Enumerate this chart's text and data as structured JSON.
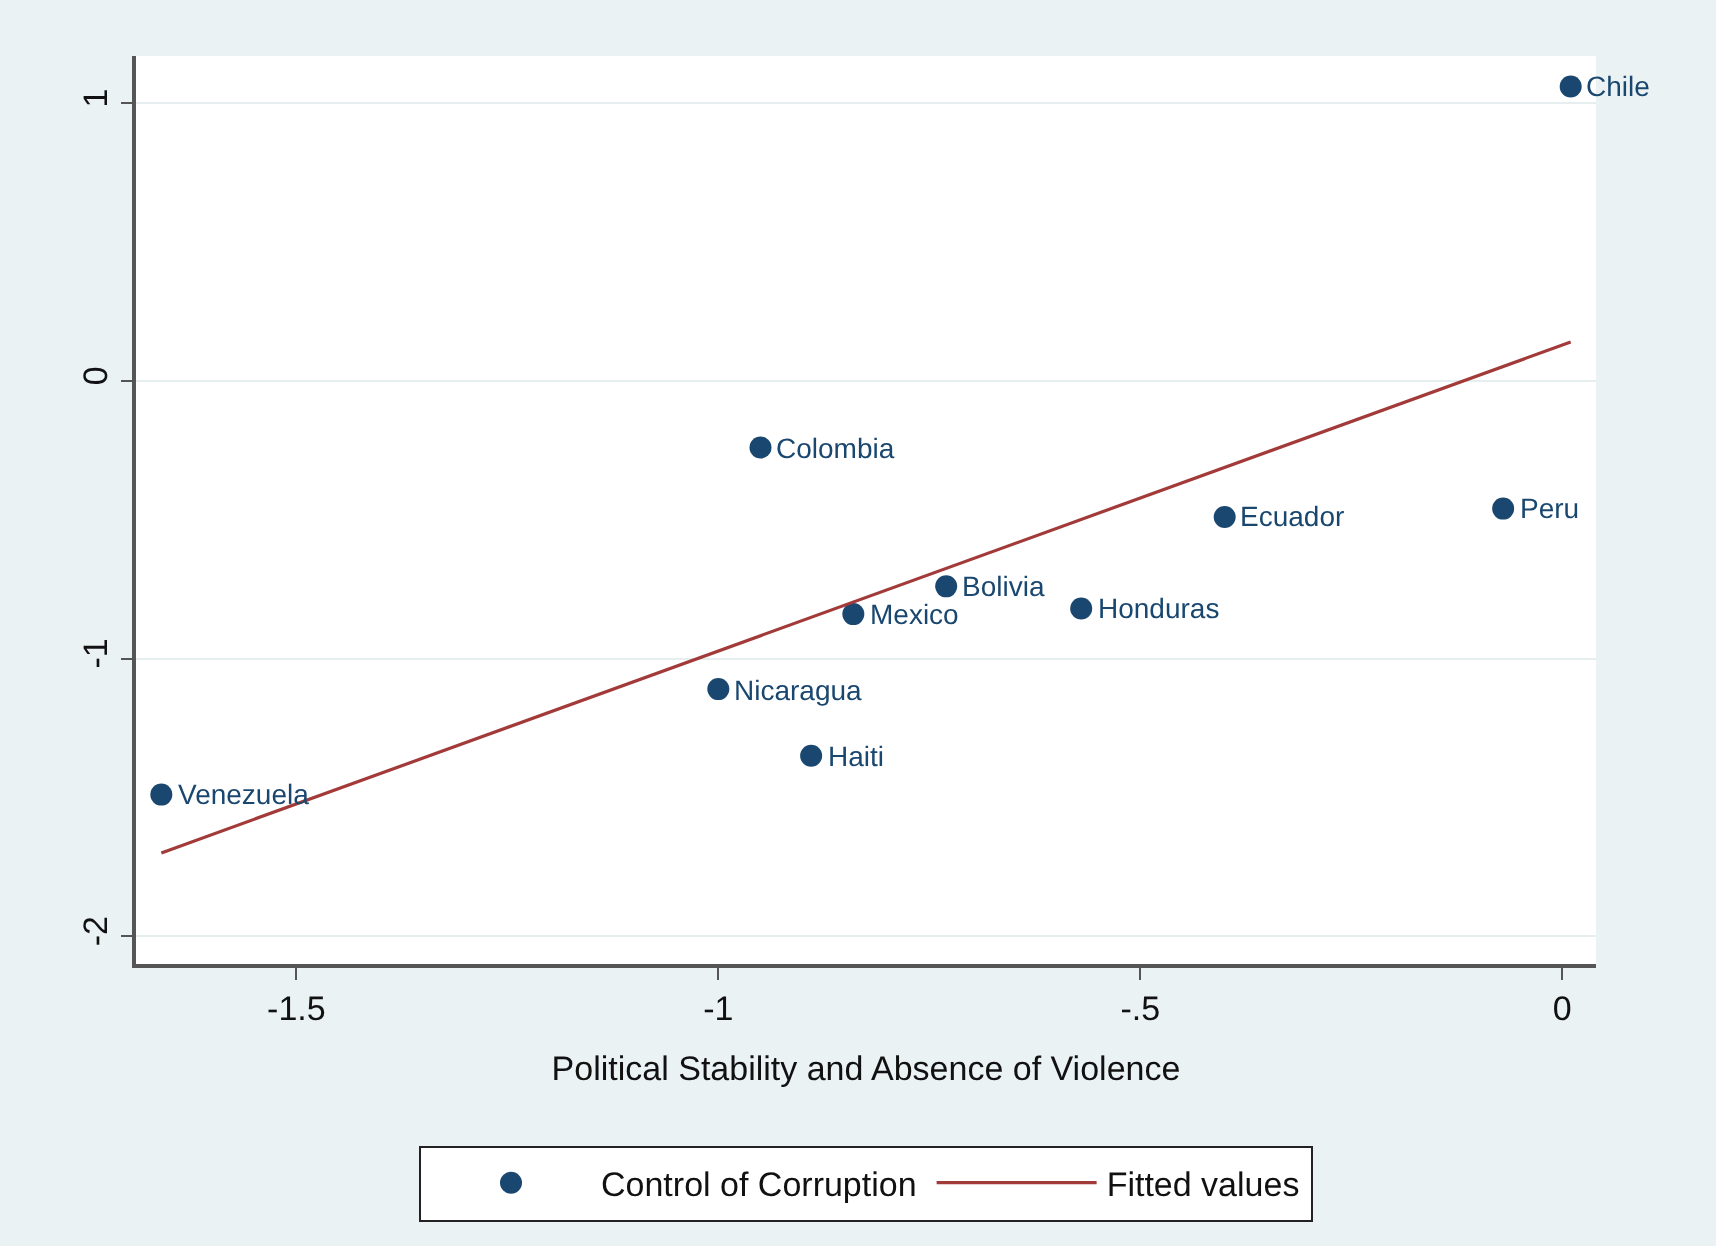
{
  "chart_data": {
    "type": "scatter",
    "xlabel": "Political Stability and Absence of Violence",
    "xlim": [
      -1.69,
      0.04
    ],
    "xticks": [
      {
        "value": -1.5,
        "label": "-1.5"
      },
      {
        "value": -1,
        "label": "-1"
      },
      {
        "value": -0.5,
        "label": "-.5"
      },
      {
        "value": 0,
        "label": "0"
      }
    ],
    "ylim": [
      -2.1,
      1.17
    ],
    "yticks": [
      -2,
      -1,
      0,
      1
    ],
    "grid": "y",
    "legend": "bottom",
    "series": [
      {
        "name": "Control of Corruption",
        "marker": "circle",
        "color": "#1a476f",
        "x": [
          -1.66,
          -1.0,
          -0.95,
          -0.89,
          -0.84,
          -0.73,
          -0.57,
          -0.4,
          -0.07,
          0.01
        ],
        "values": [
          -1.49,
          -1.11,
          -0.24,
          -1.35,
          -0.84,
          -0.74,
          -0.82,
          -0.49,
          -0.46,
          1.06
        ]
      },
      {
        "name": "Fitted values",
        "type": "line",
        "color": "#a33a3a",
        "line_style": "solid",
        "x": [
          -1.66,
          0.01
        ],
        "values": [
          -1.7,
          0.14
        ]
      }
    ],
    "annotations": [
      {
        "text": "Venezuela",
        "x": -1.66,
        "y": -1.49
      },
      {
        "text": "Nicaragua",
        "x": -1.0,
        "y": -1.11
      },
      {
        "text": "Colombia",
        "x": -0.95,
        "y": -0.24
      },
      {
        "text": "Haiti",
        "x": -0.89,
        "y": -1.35
      },
      {
        "text": "Mexico",
        "x": -0.84,
        "y": -0.84
      },
      {
        "text": "Bolivia",
        "x": -0.73,
        "y": -0.74
      },
      {
        "text": "Honduras",
        "x": -0.57,
        "y": -0.82
      },
      {
        "text": "Ecuador",
        "x": -0.4,
        "y": -0.49
      },
      {
        "text": "Peru",
        "x": -0.07,
        "y": -0.46
      },
      {
        "text": "Chile",
        "x": 0.01,
        "y": 1.06
      }
    ]
  }
}
